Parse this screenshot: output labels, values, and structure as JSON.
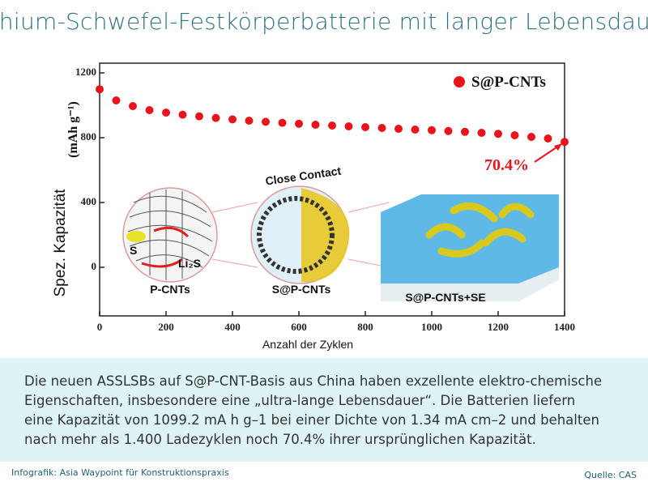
{
  "chart_data": {
    "type": "scatter",
    "title": "Lithium-Schwefel-Festkörperbatterie mit langer Lebensdauer",
    "x_label": "Anzahl der Zyklen",
    "y_label": "Spez. Kapazität",
    "y_unit": "(mAh g⁻¹)",
    "x": [
      0,
      50,
      100,
      150,
      200,
      250,
      300,
      350,
      400,
      450,
      500,
      550,
      600,
      650,
      700,
      750,
      800,
      850,
      900,
      950,
      1000,
      1050,
      1100,
      1150,
      1200,
      1250,
      1300,
      1350,
      1400
    ],
    "series": [
      {
        "name": "S@P-CNTs",
        "color": "#e8141c",
        "values": [
          1099,
          1030,
          995,
          970,
          955,
          942,
          932,
          922,
          913,
          905,
          898,
          892,
          886,
          880,
          875,
          870,
          865,
          860,
          855,
          850,
          846,
          841,
          836,
          830,
          824,
          815,
          805,
          795,
          774
        ]
      }
    ],
    "xlim": [
      0,
      1400
    ],
    "xticks": [
      0,
      200,
      400,
      600,
      800,
      1000,
      1200,
      1400
    ],
    "ylim": [
      -300,
      1260
    ],
    "yticks": [
      0,
      400,
      800,
      1200
    ],
    "annotations": [
      "70.4%",
      "Close Contact",
      "P-CNTs",
      "S@P-CNTs",
      "S@P-CNTs+SE",
      "S",
      "Li₂S"
    ]
  },
  "description": [
    "Die neuen ASSLSBs auf S@P-CNT-Basis aus China haben exzellente elektro-chemische",
    "Eigenschaften, insbesondere eine „ultra-lange Lebensdauer“.  Die Batterien liefern",
    "eine Kapazität von 1099.2 mA h g–1 bei einer Dichte von 1.34 mA cm–2 und  behalten",
    "nach mehr als 1.400 Ladezyklen noch 70.4% ihrer ursprünglichen Kapazität."
  ],
  "footer": {
    "credit": "Infografik: Asia Waypoint für Konstruktionspraxis",
    "source": "Quelle: CAS"
  }
}
